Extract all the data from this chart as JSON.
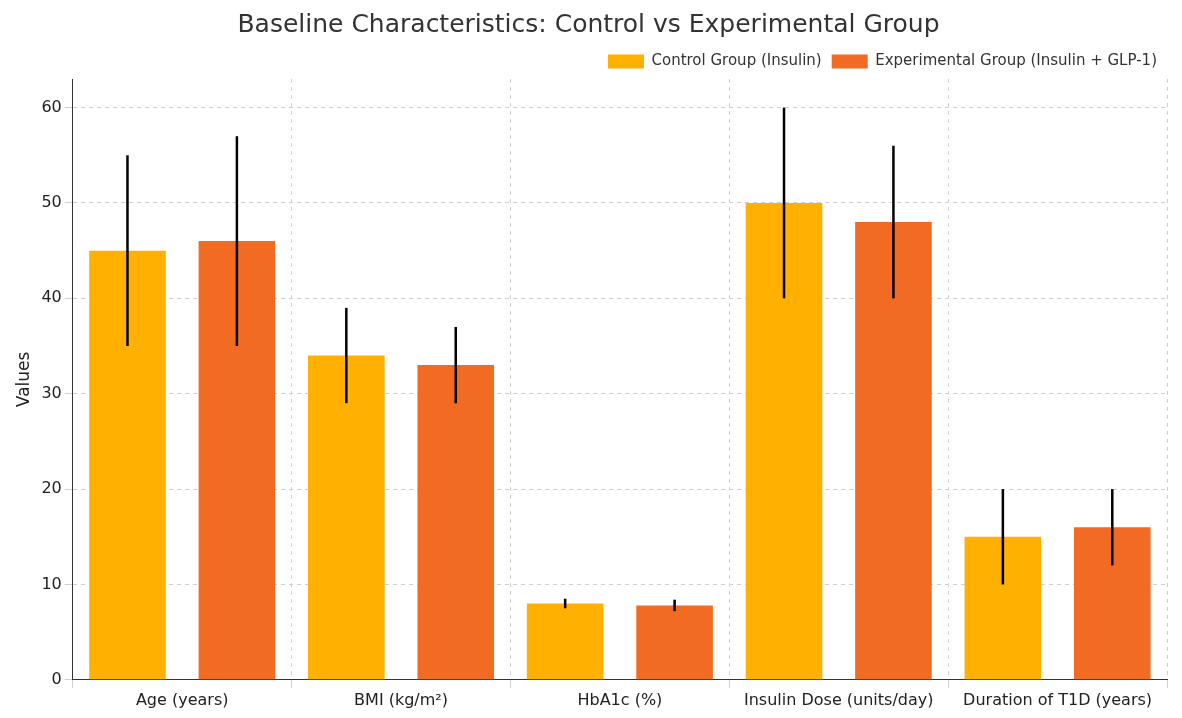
{
  "chart_data": {
    "type": "bar",
    "title": "Baseline Characteristics: Control vs Experimental Group",
    "ylabel": "Values",
    "categories": [
      "Age (years)",
      "BMI (kg/m²)",
      "HbA1c (%)",
      "Insulin Dose (units/day)",
      "Duration of T1D (years)"
    ],
    "series": [
      {
        "name": "Control Group (Insulin)",
        "color": "#ffb000",
        "values": [
          45,
          34,
          8,
          50,
          15
        ],
        "errors": [
          10,
          5,
          0.5,
          10,
          5
        ]
      },
      {
        "name": "Experimental Group (Insulin + GLP-1)",
        "color": "#f26b22",
        "values": [
          46,
          33,
          7.8,
          48,
          16
        ],
        "errors": [
          11,
          4,
          0.6,
          8,
          4
        ]
      }
    ],
    "ylim": [
      0,
      63
    ],
    "yticks": [
      0,
      10,
      20,
      30,
      40,
      50,
      60
    ],
    "grid": true,
    "legend": "top right"
  }
}
